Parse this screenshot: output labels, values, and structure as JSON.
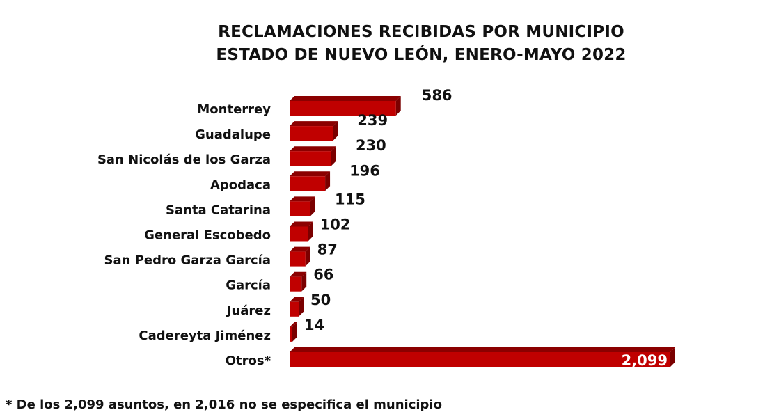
{
  "chart_data": {
    "type": "bar",
    "orientation": "horizontal",
    "title": "RECLAMACIONES RECIBIDAS POR MUNICIPIO",
    "subtitle": "ESTADO DE NUEVO LEÓN, ENERO-MAYO 2022",
    "categories": [
      "Monterrey",
      "Guadalupe",
      "San Nicolás de los Garza",
      "Apodaca",
      "Santa Catarina",
      "General Escobedo",
      "San Pedro Garza García",
      "García",
      "Juárez",
      "Cadereyta Jiménez",
      "Otros*"
    ],
    "values": [
      586,
      239,
      230,
      196,
      115,
      102,
      87,
      66,
      50,
      14,
      2099
    ],
    "value_labels": [
      "586",
      "239",
      "230",
      "196",
      "115",
      "102",
      "87",
      "66",
      "50",
      "14",
      "2,099"
    ],
    "xlabel": "",
    "ylabel": "",
    "xlim": [
      0,
      2099
    ],
    "grid": false,
    "bar_color": "#c00000",
    "bar_side_color": "#8b0000"
  },
  "footnote": "* De los 2,099 asuntos, en 2,016 no se especifica el municipio"
}
